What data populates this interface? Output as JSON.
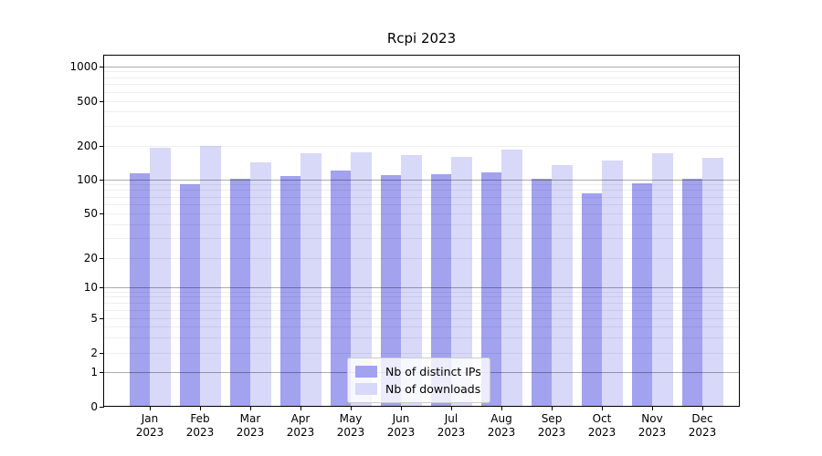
{
  "chart_data": {
    "type": "bar",
    "title": "Rcpi 2023",
    "categories": [
      "Jan 2023",
      "Feb 2023",
      "Mar 2023",
      "Apr 2023",
      "May 2023",
      "Jun 2023",
      "Jul 2023",
      "Aug 2023",
      "Sep 2023",
      "Oct 2023",
      "Nov 2023",
      "Dec 2023"
    ],
    "series": [
      {
        "name": "Nb of distinct IPs",
        "color": "#a2a2ef",
        "values": [
          110,
          88,
          100,
          104,
          117,
          106,
          108,
          114,
          100,
          74,
          91,
          100
        ]
      },
      {
        "name": "Nb of downloads",
        "color": "#d8d8f8",
        "values": [
          188,
          193,
          140,
          167,
          171,
          162,
          155,
          181,
          131,
          145,
          168,
          152
        ]
      }
    ],
    "xlabel": "",
    "ylabel": "",
    "yscale": "symlog",
    "yticks": [
      0,
      1,
      2,
      5,
      10,
      20,
      50,
      100,
      200,
      500,
      1000
    ],
    "ylim": [
      0,
      1000
    ],
    "grid": "both",
    "legend_position": "lower center",
    "colors": {
      "major_gridline": "#a8a8a8",
      "minor_gridline": "#ededed",
      "axis": "#000000",
      "legend_border": "#cccccc"
    }
  }
}
